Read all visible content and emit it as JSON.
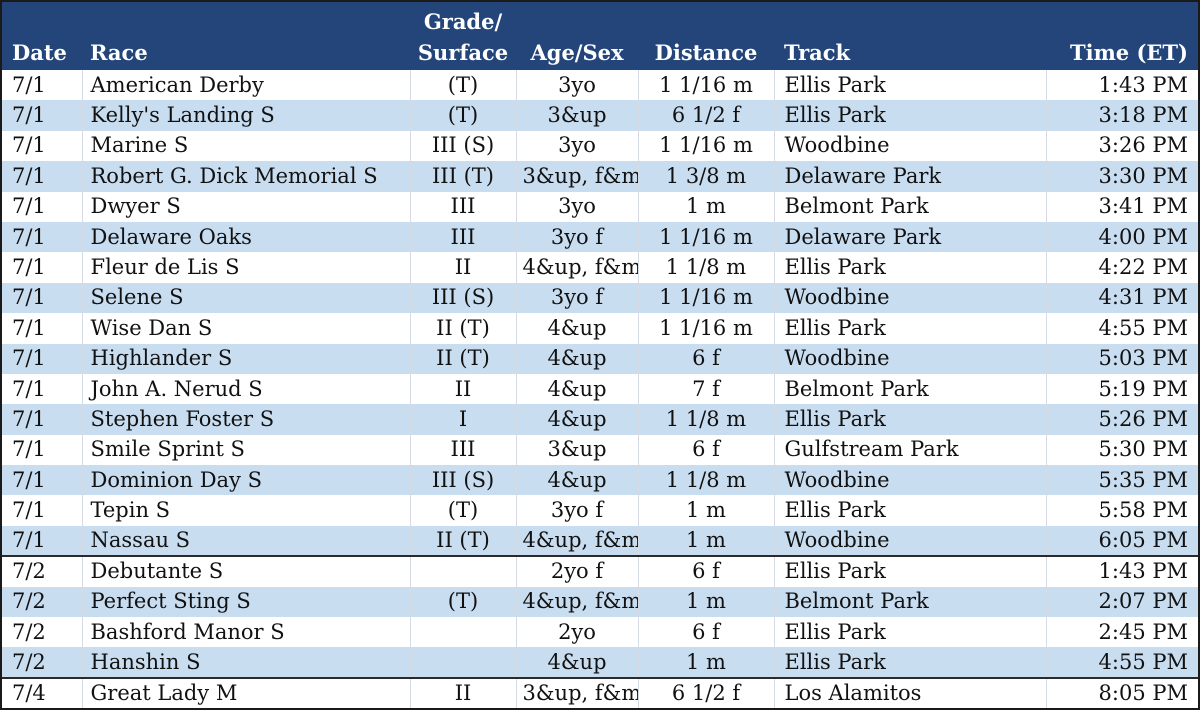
{
  "header": {
    "date": "Date",
    "race": "Race",
    "grade_line1": "Grade/",
    "grade_line2": "Surface",
    "age_sex": "Age/Sex",
    "distance": "Distance",
    "track": "Track",
    "time": "Time (ET)"
  },
  "rows": [
    {
      "date": "7/1",
      "race": "American Derby",
      "grade": "(T)",
      "age": "3yo",
      "distance": "1 1/16 m",
      "track": "Ellis Park",
      "time": "1:43 PM"
    },
    {
      "date": "7/1",
      "race": "Kelly's Landing S",
      "grade": "(T)",
      "age": "3&up",
      "distance": "6 1/2 f",
      "track": "Ellis Park",
      "time": "3:18 PM"
    },
    {
      "date": "7/1",
      "race": "Marine S",
      "grade": "III (S)",
      "age": "3yo",
      "distance": "1 1/16 m",
      "track": "Woodbine",
      "time": "3:26 PM"
    },
    {
      "date": "7/1",
      "race": "Robert G. Dick Memorial S",
      "grade": "III (T)",
      "age": "3&up, f&m",
      "distance": "1 3/8 m",
      "track": "Delaware Park",
      "time": "3:30 PM"
    },
    {
      "date": "7/1",
      "race": "Dwyer S",
      "grade": "III",
      "age": "3yo",
      "distance": "1 m",
      "track": "Belmont Park",
      "time": "3:41 PM"
    },
    {
      "date": "7/1",
      "race": "Delaware Oaks",
      "grade": "III",
      "age": "3yo f",
      "distance": "1 1/16 m",
      "track": "Delaware Park",
      "time": "4:00 PM"
    },
    {
      "date": "7/1",
      "race": "Fleur de Lis S",
      "grade": "II",
      "age": "4&up, f&m",
      "distance": "1 1/8 m",
      "track": "Ellis Park",
      "time": "4:22 PM"
    },
    {
      "date": "7/1",
      "race": "Selene S",
      "grade": "III (S)",
      "age": "3yo f",
      "distance": "1 1/16 m",
      "track": "Woodbine",
      "time": "4:31 PM"
    },
    {
      "date": "7/1",
      "race": "Wise Dan S",
      "grade": "II (T)",
      "age": "4&up",
      "distance": "1 1/16 m",
      "track": "Ellis Park",
      "time": "4:55 PM"
    },
    {
      "date": "7/1",
      "race": "Highlander S",
      "grade": "II (T)",
      "age": "4&up",
      "distance": "6 f",
      "track": "Woodbine",
      "time": "5:03 PM"
    },
    {
      "date": "7/1",
      "race": "John A. Nerud S",
      "grade": "II",
      "age": "4&up",
      "distance": "7 f",
      "track": "Belmont Park",
      "time": "5:19 PM"
    },
    {
      "date": "7/1",
      "race": "Stephen Foster S",
      "grade": "I",
      "age": "4&up",
      "distance": "1 1/8 m",
      "track": "Ellis Park",
      "time": "5:26 PM"
    },
    {
      "date": "7/1",
      "race": "Smile Sprint S",
      "grade": "III",
      "age": "3&up",
      "distance": "6 f",
      "track": "Gulfstream Park",
      "time": "5:30 PM"
    },
    {
      "date": "7/1",
      "race": "Dominion Day S",
      "grade": "III (S)",
      "age": "4&up",
      "distance": "1 1/8 m",
      "track": "Woodbine",
      "time": "5:35 PM"
    },
    {
      "date": "7/1",
      "race": "Tepin S",
      "grade": "(T)",
      "age": "3yo f",
      "distance": "1 m",
      "track": "Ellis Park",
      "time": "5:58 PM"
    },
    {
      "date": "7/1",
      "race": "Nassau S",
      "grade": "II (T)",
      "age": "4&up, f&m",
      "distance": "1 m",
      "track": "Woodbine",
      "time": "6:05 PM"
    },
    {
      "date": "7/2",
      "race": "Debutante S",
      "grade": "",
      "age": "2yo f",
      "distance": "6 f",
      "track": "Ellis Park",
      "time": "1:43 PM"
    },
    {
      "date": "7/2",
      "race": "Perfect Sting S",
      "grade": "(T)",
      "age": "4&up, f&m",
      "distance": "1 m",
      "track": "Belmont Park",
      "time": "2:07 PM"
    },
    {
      "date": "7/2",
      "race": "Bashford Manor S",
      "grade": "",
      "age": "2yo",
      "distance": "6 f",
      "track": "Ellis Park",
      "time": "2:45 PM"
    },
    {
      "date": "7/2",
      "race": "Hanshin S",
      "grade": "",
      "age": "4&up",
      "distance": "1 m",
      "track": "Ellis Park",
      "time": "4:55 PM"
    },
    {
      "date": "7/4",
      "race": "Great Lady M",
      "grade": "II",
      "age": "3&up, f&m",
      "distance": "6 1/2 f",
      "track": "Los Alamitos",
      "time": "8:05 PM"
    }
  ]
}
